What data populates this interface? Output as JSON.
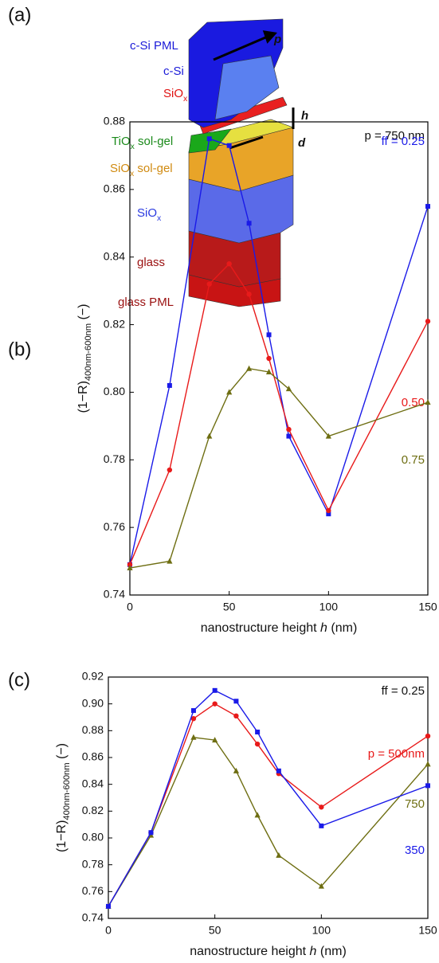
{
  "diagram": {
    "panel_label": "(a)",
    "labels": [
      {
        "text": "c-Si PML",
        "color": "#1a1ad8"
      },
      {
        "text": "c-Si",
        "color": "#1a1ad8"
      },
      {
        "text": "SiO",
        "sub": "x",
        "color": "#e01010"
      },
      {
        "text": "TiO",
        "sub": "x",
        "rest": " sol-gel",
        "color": "#1a8a1a"
      },
      {
        "text": "SiO",
        "sub": "x",
        "rest": " sol-gel",
        "color": "#d08a10"
      },
      {
        "text": "SiO",
        "sub": "x",
        "color": "#2a3ae0"
      },
      {
        "text": "glass",
        "color": "#9a1010"
      },
      {
        "text": "glass PML",
        "color": "#9a1010"
      }
    ],
    "arrow_labels": [
      "p",
      "h",
      "d"
    ]
  },
  "chart_data": [
    {
      "type": "line",
      "panel_label": "(b)",
      "annotation": "p = 750 nm",
      "ylabel": {
        "text": "(1−R)",
        "sub": "400nm-600nm",
        "rest": " (−)"
      },
      "xlabel": {
        "text": "nanostructure height ",
        "italic": "h",
        "rest": " (nm)"
      },
      "x": [
        0,
        20,
        40,
        50,
        60,
        70,
        80,
        100,
        150
      ],
      "series": [
        {
          "name": "ff = 0.25",
          "color": "#1a1ae8",
          "marker": "square",
          "values": [
            0.749,
            0.802,
            0.875,
            0.873,
            0.85,
            0.817,
            0.787,
            0.764,
            0.855
          ]
        },
        {
          "name": "0.50",
          "color": "#e81a1a",
          "marker": "circle",
          "values": [
            0.749,
            0.777,
            0.832,
            0.838,
            0.829,
            0.81,
            0.789,
            0.765,
            0.821
          ]
        },
        {
          "name": "0.75",
          "color": "#6e6e12",
          "marker": "triangle",
          "values": [
            0.748,
            0.75,
            0.787,
            0.8,
            0.807,
            0.806,
            0.801,
            0.787,
            0.797
          ]
        }
      ],
      "xlim": [
        0,
        150
      ],
      "xticks": [
        0,
        50,
        100,
        150
      ],
      "ylim": [
        0.74,
        0.88
      ],
      "yticks": [
        0.74,
        0.76,
        0.78,
        {
          "value": 0.8,
          "label": "0.80"
        },
        0.82,
        0.84,
        0.86,
        0.88
      ]
    },
    {
      "type": "line",
      "panel_label": "(c)",
      "annotation": "ff = 0.25",
      "ylabel": {
        "text": "(1−R)",
        "sub": "400nm-600nm",
        "rest": " (−)"
      },
      "xlabel": {
        "text": "nanostructure height ",
        "italic": "h",
        "rest": " (nm)"
      },
      "x": [
        0,
        20,
        40,
        50,
        60,
        70,
        80,
        100,
        150
      ],
      "series": [
        {
          "name": "p = 500nm",
          "color": "#e81a1a",
          "marker": "circle",
          "values": [
            0.749,
            0.804,
            0.889,
            0.9,
            0.891,
            0.87,
            0.848,
            0.823,
            0.876
          ]
        },
        {
          "name": "750",
          "color": "#6e6e12",
          "marker": "triangle",
          "values": [
            0.749,
            0.802,
            0.875,
            0.873,
            0.85,
            0.817,
            0.787,
            0.764,
            0.855
          ]
        },
        {
          "name": "350",
          "color": "#1a1ae8",
          "marker": "square",
          "values": [
            0.749,
            0.804,
            0.895,
            0.91,
            0.902,
            0.879,
            0.85,
            0.809,
            0.839
          ]
        }
      ],
      "xlim": [
        0,
        150
      ],
      "xticks": [
        0,
        50,
        100,
        150
      ],
      "ylim": [
        0.74,
        0.92
      ],
      "yticks": [
        0.74,
        0.76,
        0.78,
        {
          "value": 0.8,
          "label": "0.80"
        },
        0.82,
        0.84,
        0.86,
        0.88,
        {
          "value": 0.9,
          "label": "0.90"
        },
        0.92
      ]
    }
  ]
}
